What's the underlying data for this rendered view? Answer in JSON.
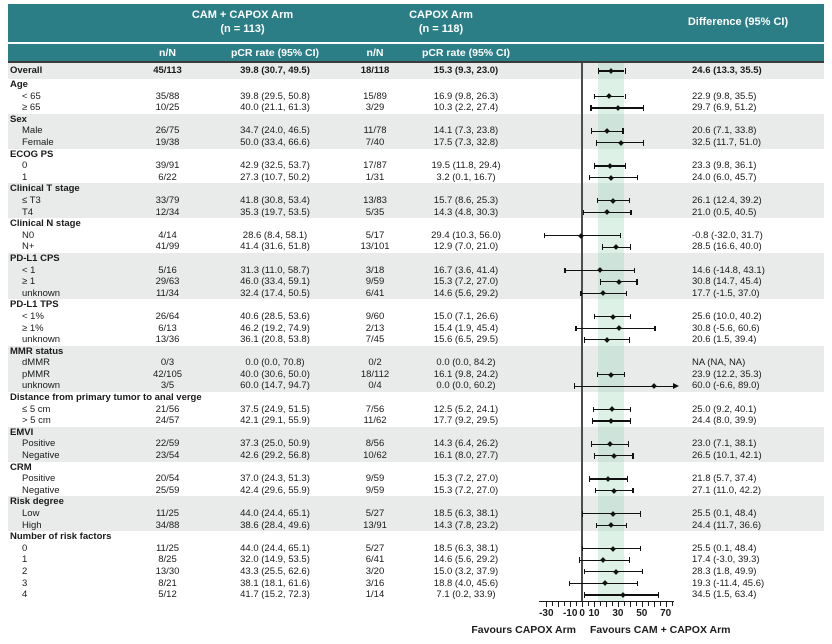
{
  "header": {
    "arm1_line1": "CAM + CAPOX Arm",
    "arm1_line2": "(n = 113)",
    "arm2_line1": "CAPOX Arm",
    "arm2_line2": "(n = 118)",
    "diff_title": "Difference (95% CI)",
    "col_nn1": "n/N",
    "col_pcr1": "pCR rate (95% CI)",
    "col_nn2": "n/N",
    "col_pcr2": "pCR rate (95% CI)"
  },
  "colors": {
    "header_teal": "#2b7e86",
    "row_gray": "#e9eaea",
    "band_mint": "rgba(149,210,179,0.32)",
    "zero_line": "#4d4d4d",
    "marks": "#111111"
  },
  "chart_data": {
    "type": "forest",
    "xlim": [
      -42,
      82
    ],
    "axis_line_range": [
      -36,
      77
    ],
    "ticks_minor": [
      -30,
      -25,
      -20,
      -15,
      -10,
      -5,
      0,
      5,
      10,
      15,
      20,
      25,
      30,
      35,
      40,
      45,
      50,
      55,
      60,
      65,
      70,
      75
    ],
    "ticks_labeled": [
      -30,
      -10,
      0,
      10,
      30,
      50,
      70
    ],
    "shaded_band": [
      13.3,
      35.5
    ],
    "favours_left": "Favours CAPOX Arm",
    "favours_right": "Favours CAM + CAPOX Arm",
    "rows": [
      {
        "kind": "overall",
        "shade": "g",
        "label": "Overall",
        "n1": "45/113",
        "pcr1": "39.8 (30.7, 49.5)",
        "n2": "18/118",
        "pcr2": "15.3 (9.3, 23.0)",
        "diff": "24.6 (13.3, 35.5)",
        "est": 24.6,
        "lo": 13.3,
        "hi": 35.5
      },
      {
        "kind": "group",
        "shade": "w",
        "label": "Age"
      },
      {
        "kind": "data",
        "shade": "w",
        "label": "< 65",
        "n1": "35/88",
        "pcr1": "39.8 (29.5, 50.8)",
        "n2": "15/89",
        "pcr2": "16.9 (9.8, 26.3)",
        "diff": "22.9 (9.8, 35.5)",
        "est": 22.9,
        "lo": 9.8,
        "hi": 35.5
      },
      {
        "kind": "data",
        "shade": "w",
        "label": "≥ 65",
        "n1": "10/25",
        "pcr1": "40.0 (21.1, 61.3)",
        "n2": "3/29",
        "pcr2": "10.3 (2.2, 27.4)",
        "diff": "29.7 (6.9, 51.2)",
        "est": 29.7,
        "lo": 6.9,
        "hi": 51.2
      },
      {
        "kind": "group",
        "shade": "g",
        "label": "Sex"
      },
      {
        "kind": "data",
        "shade": "g",
        "label": "Male",
        "n1": "26/75",
        "pcr1": "34.7 (24.0, 46.5)",
        "n2": "11/78",
        "pcr2": "14.1 (7.3, 23.8)",
        "diff": "20.6 (7.1, 33.8)",
        "est": 20.6,
        "lo": 7.1,
        "hi": 33.8
      },
      {
        "kind": "data",
        "shade": "g",
        "label": "Female",
        "n1": "19/38",
        "pcr1": "50.0 (33.4, 66.6)",
        "n2": "7/40",
        "pcr2": "17.5 (7.3, 32.8)",
        "diff": "32.5 (11.7, 51.0)",
        "est": 32.5,
        "lo": 11.7,
        "hi": 51.0
      },
      {
        "kind": "group",
        "shade": "w",
        "label": "ECOG PS"
      },
      {
        "kind": "data",
        "shade": "w",
        "label": "0",
        "n1": "39/91",
        "pcr1": "42.9 (32.5, 53.7)",
        "n2": "17/87",
        "pcr2": "19.5 (11.8, 29.4)",
        "diff": "23.3 (9.8, 36.1)",
        "est": 23.3,
        "lo": 9.8,
        "hi": 36.1
      },
      {
        "kind": "data",
        "shade": "w",
        "label": "1",
        "n1": "6/22",
        "pcr1": "27.3 (10.7, 50.2)",
        "n2": "1/31",
        "pcr2": "3.2 (0.1, 16.7)",
        "diff": "24.0 (6.0, 45.7)",
        "est": 24.0,
        "lo": 6.0,
        "hi": 45.7
      },
      {
        "kind": "group",
        "shade": "g",
        "label": "Clinical T stage"
      },
      {
        "kind": "data",
        "shade": "g",
        "label": "≤ T3",
        "n1": "33/79",
        "pcr1": "41.8 (30.8, 53.4)",
        "n2": "13/83",
        "pcr2": "15.7 (8.6, 25.3)",
        "diff": "26.1 (12.4, 39.2)",
        "est": 26.1,
        "lo": 12.4,
        "hi": 39.2
      },
      {
        "kind": "data",
        "shade": "g",
        "label": "T4",
        "n1": "12/34",
        "pcr1": "35.3 (19.7, 53.5)",
        "n2": "5/35",
        "pcr2": "14.3 (4.8, 30.3)",
        "diff": "21.0 (0.5, 40.5)",
        "est": 21.0,
        "lo": 0.5,
        "hi": 40.5
      },
      {
        "kind": "group",
        "shade": "w",
        "label": "Clinical N stage"
      },
      {
        "kind": "data",
        "shade": "w",
        "label": "N0",
        "n1": "4/14",
        "pcr1": "28.6 (8.4, 58.1)",
        "n2": "5/17",
        "pcr2": "29.4 (10.3, 56.0)",
        "diff": "-0.8 (-32.0, 31.7)",
        "est": -0.8,
        "lo": -32.0,
        "hi": 31.7
      },
      {
        "kind": "data",
        "shade": "w",
        "label": "N+",
        "n1": "41/99",
        "pcr1": "41.4 (31.6, 51.8)",
        "n2": "13/101",
        "pcr2": "12.9 (7.0, 21.0)",
        "diff": "28.5 (16.6, 40.0)",
        "est": 28.5,
        "lo": 16.6,
        "hi": 40.0
      },
      {
        "kind": "group",
        "shade": "g",
        "label": "PD-L1 CPS"
      },
      {
        "kind": "data",
        "shade": "g",
        "label": "< 1",
        "n1": "5/16",
        "pcr1": "31.3 (11.0, 58.7)",
        "n2": "3/18",
        "pcr2": "16.7 (3.6, 41.4)",
        "diff": "14.6 (-14.8, 43.1)",
        "est": 14.6,
        "lo": -14.8,
        "hi": 43.1
      },
      {
        "kind": "data",
        "shade": "g",
        "label": "≥ 1",
        "n1": "29/63",
        "pcr1": "46.0 (33.4, 59.1)",
        "n2": "9/59",
        "pcr2": "15.3 (7.2, 27.0)",
        "diff": "30.8 (14.7, 45.4)",
        "est": 30.8,
        "lo": 14.7,
        "hi": 45.4
      },
      {
        "kind": "data",
        "shade": "g",
        "label": "unknown",
        "n1": "11/34",
        "pcr1": "32.4 (17.4, 50.5)",
        "n2": "6/41",
        "pcr2": "14.6 (5.6, 29.2)",
        "diff": "17.7 (-1.5, 37.0)",
        "est": 17.7,
        "lo": -1.5,
        "hi": 37.0
      },
      {
        "kind": "group",
        "shade": "w",
        "label": "PD-L1 TPS"
      },
      {
        "kind": "data",
        "shade": "w",
        "label": "< 1%",
        "n1": "26/64",
        "pcr1": "40.6 (28.5, 53.6)",
        "n2": "9/60",
        "pcr2": "15.0 (7.1, 26.6)",
        "diff": "25.6 (10.0, 40.2)",
        "est": 25.6,
        "lo": 10.0,
        "hi": 40.2
      },
      {
        "kind": "data",
        "shade": "w",
        "label": "≥ 1%",
        "n1": "6/13",
        "pcr1": "46.2 (19.2, 74.9)",
        "n2": "2/13",
        "pcr2": "15.4 (1.9, 45.4)",
        "diff": "30.8 (-5.6, 60.6)",
        "est": 30.8,
        "lo": -5.6,
        "hi": 60.6
      },
      {
        "kind": "data",
        "shade": "w",
        "label": "unknown",
        "n1": "13/36",
        "pcr1": "36.1 (20.8, 53.8)",
        "n2": "7/45",
        "pcr2": "15.6 (6.5, 29.5)",
        "diff": "20.6 (1.5, 39.4)",
        "est": 20.6,
        "lo": 1.5,
        "hi": 39.4
      },
      {
        "kind": "group",
        "shade": "g",
        "label": "MMR status"
      },
      {
        "kind": "data",
        "shade": "g",
        "label": "dMMR",
        "n1": "0/3",
        "pcr1": "0.0 (0.0, 70.8)",
        "n2": "0/2",
        "pcr2": "0.0 (0.0, 84.2)",
        "diff": "NA (NA, NA)",
        "est": null,
        "lo": null,
        "hi": null
      },
      {
        "kind": "data",
        "shade": "g",
        "label": "pMMR",
        "n1": "42/105",
        "pcr1": "40.0 (30.6, 50.0)",
        "n2": "18/112",
        "pcr2": "16.1 (9.8, 24.2)",
        "diff": "23.9 (12.2, 35.3)",
        "est": 23.9,
        "lo": 12.2,
        "hi": 35.3
      },
      {
        "kind": "data",
        "shade": "g",
        "label": "unknown",
        "n1": "3/5",
        "pcr1": "60.0 (14.7, 94.7)",
        "n2": "0/4",
        "pcr2": "0.0 (0.0, 60.2)",
        "diff": "60.0 (-6.6, 89.0)",
        "est": 60.0,
        "lo": -6.6,
        "hi": 89.0,
        "arrow": true
      },
      {
        "kind": "group",
        "shade": "w",
        "label": "Distance from primary tumor to anal verge"
      },
      {
        "kind": "data",
        "shade": "w",
        "label": "≤ 5 cm",
        "n1": "21/56",
        "pcr1": "37.5 (24.9, 51.5)",
        "n2": "7/56",
        "pcr2": "12.5 (5.2, 24.1)",
        "diff": "25.0 (9.2, 40.1)",
        "est": 25.0,
        "lo": 9.2,
        "hi": 40.1
      },
      {
        "kind": "data",
        "shade": "w",
        "label": "> 5 cm",
        "n1": "24/57",
        "pcr1": "42.1 (29.1, 55.9)",
        "n2": "11/62",
        "pcr2": "17.7 (9.2, 29.5)",
        "diff": "24.4 (8.0, 39.9)",
        "est": 24.4,
        "lo": 8.0,
        "hi": 39.9
      },
      {
        "kind": "group",
        "shade": "g",
        "label": "EMVI"
      },
      {
        "kind": "data",
        "shade": "g",
        "label": "Positive",
        "n1": "22/59",
        "pcr1": "37.3 (25.0, 50.9)",
        "n2": "8/56",
        "pcr2": "14.3 (6.4, 26.2)",
        "diff": "23.0 (7.1, 38.1)",
        "est": 23.0,
        "lo": 7.1,
        "hi": 38.1
      },
      {
        "kind": "data",
        "shade": "g",
        "label": "Negative",
        "n1": "23/54",
        "pcr1": "42.6 (29.2, 56.8)",
        "n2": "10/62",
        "pcr2": "16.1 (8.0, 27.7)",
        "diff": "26.5 (10.1, 42.1)",
        "est": 26.5,
        "lo": 10.1,
        "hi": 42.1
      },
      {
        "kind": "group",
        "shade": "w",
        "label": "CRM"
      },
      {
        "kind": "data",
        "shade": "w",
        "label": "Positive",
        "n1": "20/54",
        "pcr1": "37.0 (24.3, 51.3)",
        "n2": "9/59",
        "pcr2": "15.3 (7.2, 27.0)",
        "diff": "21.8 (5.7, 37.4)",
        "est": 21.8,
        "lo": 5.7,
        "hi": 37.4
      },
      {
        "kind": "data",
        "shade": "w",
        "label": "Negative",
        "n1": "25/59",
        "pcr1": "42.4 (29.6, 55.9)",
        "n2": "9/59",
        "pcr2": "15.3 (7.2, 27.0)",
        "diff": "27.1 (11.0, 42.2)",
        "est": 27.1,
        "lo": 11.0,
        "hi": 42.2
      },
      {
        "kind": "group",
        "shade": "g",
        "label": "Risk degree"
      },
      {
        "kind": "data",
        "shade": "g",
        "label": "Low",
        "n1": "11/25",
        "pcr1": "44.0 (24.4, 65.1)",
        "n2": "5/27",
        "pcr2": "18.5 (6.3, 38.1)",
        "diff": "25.5 (0.1, 48.4)",
        "est": 25.5,
        "lo": 0.1,
        "hi": 48.4
      },
      {
        "kind": "data",
        "shade": "g",
        "label": "High",
        "n1": "34/88",
        "pcr1": "38.6 (28.4, 49.6)",
        "n2": "13/91",
        "pcr2": "14.3 (7.8, 23.2)",
        "diff": "24.4 (11.7, 36.6)",
        "est": 24.4,
        "lo": 11.7,
        "hi": 36.6
      },
      {
        "kind": "group",
        "shade": "w",
        "label": "Number of risk factors"
      },
      {
        "kind": "data",
        "shade": "w",
        "label": "0",
        "n1": "11/25",
        "pcr1": "44.0 (24.4, 65.1)",
        "n2": "5/27",
        "pcr2": "18.5 (6.3, 38.1)",
        "diff": "25.5 (0.1, 48.4)",
        "est": 25.5,
        "lo": 0.1,
        "hi": 48.4
      },
      {
        "kind": "data",
        "shade": "w",
        "label": "1",
        "n1": "8/25",
        "pcr1": "32.0 (14.9, 53.5)",
        "n2": "6/41",
        "pcr2": "14.6 (5.6, 29.2)",
        "diff": "17.4 (-3.0, 39.3)",
        "est": 17.4,
        "lo": -3.0,
        "hi": 39.3
      },
      {
        "kind": "data",
        "shade": "w",
        "label": "2",
        "n1": "13/30",
        "pcr1": "43.3 (25.5, 62.6)",
        "n2": "3/20",
        "pcr2": "15.0 (3.2, 37.9)",
        "diff": "28.3 (1.8, 49.9)",
        "est": 28.3,
        "lo": 1.8,
        "hi": 49.9
      },
      {
        "kind": "data",
        "shade": "w",
        "label": "3",
        "n1": "8/21",
        "pcr1": "38.1 (18.1, 61.6)",
        "n2": "3/16",
        "pcr2": "18.8 (4.0, 45.6)",
        "diff": "19.3 (-11.4, 45.6)",
        "est": 19.3,
        "lo": -11.4,
        "hi": 45.6
      },
      {
        "kind": "data",
        "shade": "w",
        "label": "4",
        "n1": "5/12",
        "pcr1": "41.7 (15.2, 72.3)",
        "n2": "1/14",
        "pcr2": "7.1 (0.2, 33.9)",
        "diff": "34.5 (1.5, 63.4)",
        "est": 34.5,
        "lo": 1.5,
        "hi": 63.4
      }
    ]
  }
}
